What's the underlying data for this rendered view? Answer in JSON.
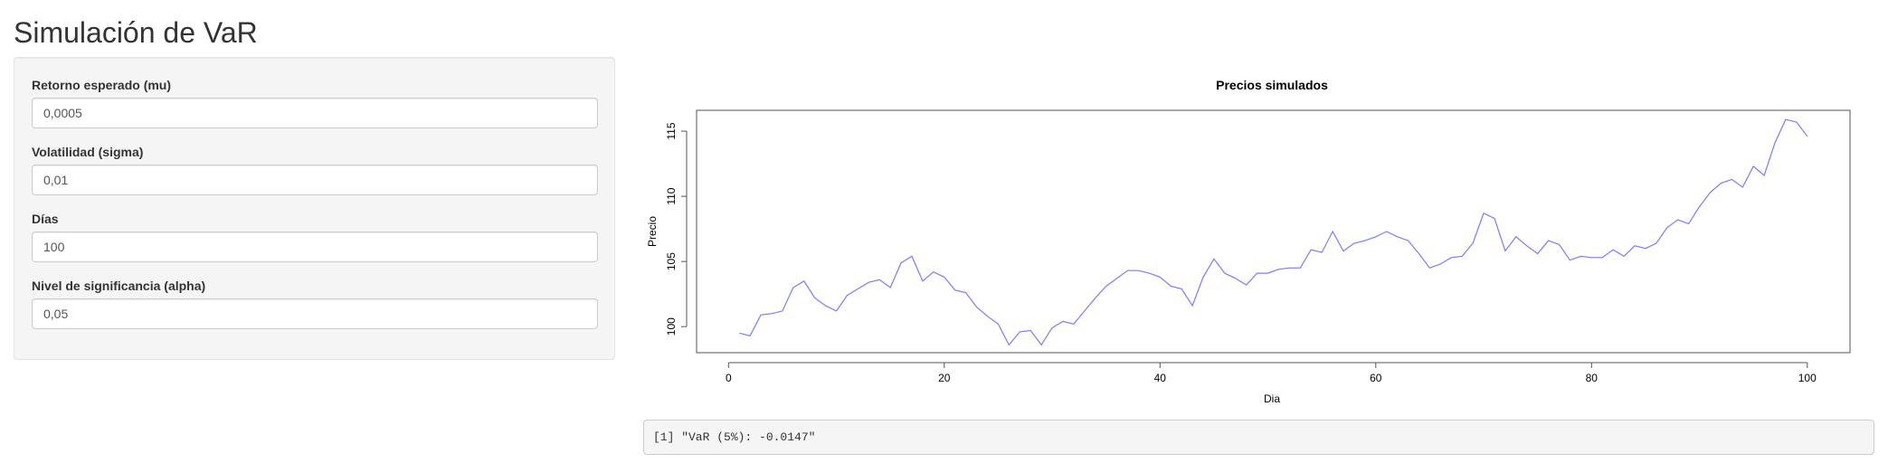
{
  "page": {
    "title": "Simulación de VaR"
  },
  "sidebar": {
    "inputs": [
      {
        "label": "Retorno esperado (mu)",
        "value": "0,0005"
      },
      {
        "label": "Volatilidad (sigma)",
        "value": "0,01"
      },
      {
        "label": "Días",
        "value": "100"
      },
      {
        "label": "Nivel de significancia (alpha)",
        "value": "0,05"
      }
    ]
  },
  "output": {
    "text": "[1] \"VaR (5%): -0.0147\""
  },
  "chart_data": {
    "type": "line",
    "title": "Precios simulados",
    "xlabel": "Dia",
    "ylabel": "Precio",
    "xlim": [
      -2.96,
      103.96
    ],
    "ylim": [
      98.0,
      116.6
    ],
    "x_ticks": [
      0,
      20,
      40,
      60,
      80,
      100
    ],
    "y_ticks": [
      100,
      105,
      110,
      115
    ],
    "grid": false,
    "line_color": "#7b7bff",
    "series": [
      {
        "x": [
          1,
          2,
          3,
          4,
          5,
          6,
          7,
          8,
          9,
          10,
          11,
          12,
          13,
          14,
          15,
          16,
          17,
          18,
          19,
          20,
          21,
          22,
          23,
          24,
          25,
          26,
          27,
          28,
          29,
          30,
          31,
          32,
          33,
          34,
          35,
          36,
          37,
          38,
          39,
          40,
          41,
          42,
          43,
          44,
          45,
          46,
          47,
          48,
          49,
          50,
          51,
          52,
          53,
          54,
          55,
          56,
          57,
          58,
          59,
          60,
          61,
          62,
          63,
          64,
          65,
          66,
          67,
          68,
          69,
          70,
          71,
          72,
          73,
          74,
          75,
          76,
          77,
          78,
          79,
          80,
          81,
          82,
          83,
          84,
          85,
          86,
          87,
          88,
          89,
          90,
          91,
          92,
          93,
          94,
          95,
          96,
          97,
          98,
          99,
          100
        ],
        "values": [
          99.5,
          99.3,
          100.9,
          101.0,
          101.2,
          103.0,
          103.5,
          102.2,
          101.6,
          101.2,
          102.4,
          102.9,
          103.4,
          103.6,
          103.0,
          104.9,
          105.4,
          103.5,
          104.2,
          103.8,
          102.8,
          102.6,
          101.5,
          100.8,
          100.2,
          98.6,
          99.6,
          99.7,
          98.6,
          99.9,
          100.4,
          100.2,
          101.2,
          102.2,
          103.1,
          103.7,
          104.3,
          104.3,
          104.1,
          103.8,
          103.1,
          102.9,
          101.6,
          103.8,
          105.2,
          104.1,
          103.7,
          103.2,
          104.1,
          104.1,
          104.4,
          104.5,
          104.5,
          105.9,
          105.7,
          107.3,
          105.8,
          106.4,
          106.6,
          106.9,
          107.3,
          106.9,
          106.6,
          105.6,
          104.5,
          104.8,
          105.3,
          105.4,
          106.4,
          108.7,
          108.3,
          105.8,
          106.9,
          106.2,
          105.6,
          106.6,
          106.3,
          105.1,
          105.4,
          105.3,
          105.3,
          105.9,
          105.4,
          106.2,
          106.0,
          106.4,
          107.6,
          108.2,
          107.9,
          109.2,
          110.3,
          111.0,
          111.3,
          110.7,
          112.3,
          111.6,
          114.1,
          115.9,
          115.7,
          114.6
        ]
      }
    ]
  }
}
